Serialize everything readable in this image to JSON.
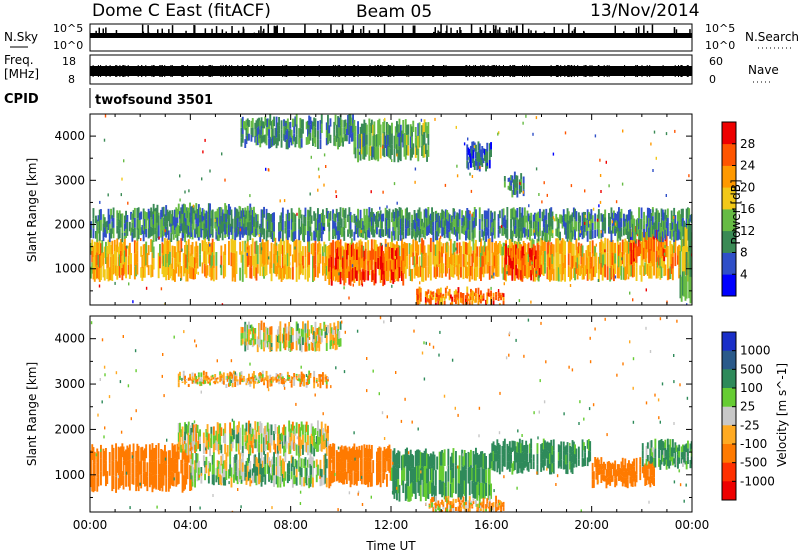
{
  "header": {
    "station": "Dome C East (fitACF)",
    "beam": "Beam 05",
    "date": "13/Nov/2014"
  },
  "nsky_panel": {
    "label": "N.Sky",
    "right_label": "N.Search",
    "left_ticks": [
      "10^5",
      "10^0"
    ],
    "right_ticks": [
      "10^5",
      "10^0"
    ]
  },
  "freq_panel": {
    "label": "Freq.",
    "unit": "[MHz]",
    "right_label": "Nave",
    "left_ticks": [
      "18",
      "8"
    ],
    "right_ticks": [
      "60",
      "0"
    ]
  },
  "cpid": {
    "label": "CPID",
    "value": "twofsound 3501"
  },
  "colors": {
    "power_scale": [
      "#0000ff",
      "#2f4fc8",
      "#3a8a55",
      "#66bb44",
      "#f2c818",
      "#ff9900",
      "#ff5500",
      "#ee0000"
    ],
    "velocity_scale": [
      "#1a2fc8",
      "#2a5a8a",
      "#2e8a5a",
      "#66cc33",
      "#c8c8c8",
      "#ffaa22",
      "#ff7a00",
      "#ff3000",
      "#ee0000"
    ]
  },
  "chart_data": [
    {
      "type": "heatmap",
      "name": "power",
      "ylabel": "Slant Range [km]",
      "xlim": [
        "00:00",
        "24:00"
      ],
      "ylim": [
        180,
        4500
      ],
      "yticks": [
        "4000",
        "3000",
        "2000",
        "1000"
      ],
      "colorbar": {
        "label": "Power [dB]",
        "ticks": [
          "28",
          "24",
          "20",
          "16",
          "12",
          "8",
          "4"
        ],
        "range": [
          0,
          32
        ]
      },
      "bands": [
        {
          "t0": 0.0,
          "t1": 24.0,
          "r0": 800,
          "r1": 1600,
          "value": 20
        },
        {
          "t0": 9.5,
          "t1": 12.5,
          "r0": 700,
          "r1": 1500,
          "value": 26
        },
        {
          "t0": 13.0,
          "t1": 16.5,
          "r0": 200,
          "r1": 500,
          "value": 24
        },
        {
          "t0": 16.5,
          "t1": 18.0,
          "r0": 800,
          "r1": 1500,
          "value": 26
        },
        {
          "t0": 21.5,
          "t1": 23.0,
          "r0": 1200,
          "r1": 1900,
          "value": 24
        },
        {
          "t0": 0.0,
          "t1": 24.0,
          "r0": 1700,
          "r1": 2300,
          "value": 10
        },
        {
          "t0": 2.5,
          "t1": 6.5,
          "r0": 1800,
          "r1": 2400,
          "value": 10
        },
        {
          "t0": 6.0,
          "t1": 10.5,
          "r0": 3800,
          "r1": 4400,
          "value": 10
        },
        {
          "t0": 10.5,
          "t1": 13.5,
          "r0": 3500,
          "r1": 4300,
          "value": 12
        },
        {
          "t0": 15.0,
          "t1": 16.0,
          "r0": 3300,
          "r1": 3800,
          "value": 7
        },
        {
          "t0": 16.5,
          "t1": 17.3,
          "r0": 2700,
          "r1": 3100,
          "value": 9
        },
        {
          "t0": 23.5,
          "t1": 24.0,
          "r0": 300,
          "r1": 2000,
          "value": 14
        }
      ]
    },
    {
      "type": "heatmap",
      "name": "velocity",
      "ylabel": "Slant Range [km]",
      "xlabel": "Time UT",
      "xlim": [
        "00:00",
        "24:00"
      ],
      "ylim": [
        180,
        4500
      ],
      "xticks": [
        "00:00",
        "04:00",
        "08:00",
        "12:00",
        "16:00",
        "20:00",
        "00:00"
      ],
      "yticks": [
        "4000",
        "3000",
        "2000",
        "1000"
      ],
      "colorbar": {
        "label": "Velocity [m s^-1]",
        "ticks": [
          "1000",
          "500",
          "100",
          "25",
          "-25",
          "-100",
          "-500",
          "-1000"
        ]
      },
      "bands": [
        {
          "t0": 0.0,
          "t1": 4.0,
          "r0": 700,
          "r1": 1600,
          "value": -300
        },
        {
          "t0": 3.5,
          "t1": 9.5,
          "r0": 1500,
          "r1": 2100,
          "value": 0
        },
        {
          "t0": 4.0,
          "t1": 9.5,
          "r0": 800,
          "r1": 1400,
          "value": 60
        },
        {
          "t0": 9.5,
          "t1": 12.0,
          "r0": 800,
          "r1": 1600,
          "value": -300
        },
        {
          "t0": 12.0,
          "t1": 16.0,
          "r0": 500,
          "r1": 1500,
          "value": 150
        },
        {
          "t0": 16.0,
          "t1": 20.0,
          "r0": 1100,
          "r1": 1700,
          "value": 200
        },
        {
          "t0": 20.0,
          "t1": 22.5,
          "r0": 800,
          "r1": 1300,
          "value": -300
        },
        {
          "t0": 13.5,
          "t1": 16.5,
          "r0": 200,
          "r1": 450,
          "value": -80
        },
        {
          "t0": 6.0,
          "t1": 10.0,
          "r0": 3800,
          "r1": 4300,
          "value": 0
        },
        {
          "t0": 3.5,
          "t1": 9.5,
          "r0": 3000,
          "r1": 3200,
          "value": -60
        },
        {
          "t0": 22.0,
          "t1": 24.0,
          "r0": 1200,
          "r1": 1700,
          "value": 120
        }
      ]
    }
  ]
}
